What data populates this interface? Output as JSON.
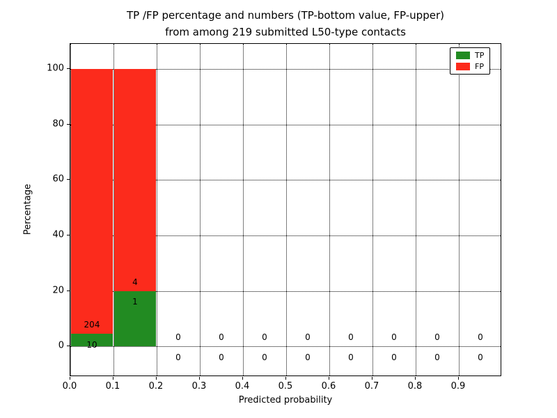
{
  "chart_data": {
    "type": "bar",
    "stacked": true,
    "title_line1": "TP /FP percentage and numbers (TP-bottom value, FP-upper)",
    "title_line2": "from among 219 submitted L50-type contacts",
    "xlabel": "Predicted probability",
    "ylabel": "Percentage",
    "xlim": [
      0.0,
      1.0
    ],
    "ylim": [
      -11,
      109
    ],
    "xticks": [
      "0.0",
      "0.1",
      "0.2",
      "0.3",
      "0.4",
      "0.5",
      "0.6",
      "0.7",
      "0.8",
      "0.9"
    ],
    "yticks": [
      0,
      20,
      40,
      60,
      80,
      100
    ],
    "grid": "dotted",
    "legend_position": "upper right",
    "total_contacts": 219,
    "series": [
      {
        "name": "TP",
        "color": "#228b22"
      },
      {
        "name": "FP",
        "color": "#fc2b1c"
      }
    ],
    "bins": [
      {
        "range": [
          0.0,
          0.1
        ],
        "tp_count": 10,
        "fp_count": 204,
        "tp_pct": 4.67,
        "fp_pct": 95.33
      },
      {
        "range": [
          0.1,
          0.2
        ],
        "tp_count": 1,
        "fp_count": 4,
        "tp_pct": 20.0,
        "fp_pct": 80.0
      },
      {
        "range": [
          0.2,
          0.3
        ],
        "tp_count": 0,
        "fp_count": 0,
        "tp_pct": 0,
        "fp_pct": 0
      },
      {
        "range": [
          0.3,
          0.4
        ],
        "tp_count": 0,
        "fp_count": 0,
        "tp_pct": 0,
        "fp_pct": 0
      },
      {
        "range": [
          0.4,
          0.5
        ],
        "tp_count": 0,
        "fp_count": 0,
        "tp_pct": 0,
        "fp_pct": 0
      },
      {
        "range": [
          0.5,
          0.6
        ],
        "tp_count": 0,
        "fp_count": 0,
        "tp_pct": 0,
        "fp_pct": 0
      },
      {
        "range": [
          0.6,
          0.7
        ],
        "tp_count": 0,
        "fp_count": 0,
        "tp_pct": 0,
        "fp_pct": 0
      },
      {
        "range": [
          0.7,
          0.8
        ],
        "tp_count": 0,
        "fp_count": 0,
        "tp_pct": 0,
        "fp_pct": 0
      },
      {
        "range": [
          0.8,
          0.9
        ],
        "tp_count": 0,
        "fp_count": 0,
        "tp_pct": 0,
        "fp_pct": 0
      },
      {
        "range": [
          0.9,
          1.0
        ],
        "tp_count": 0,
        "fp_count": 0,
        "tp_pct": 0,
        "fp_pct": 0
      }
    ]
  }
}
